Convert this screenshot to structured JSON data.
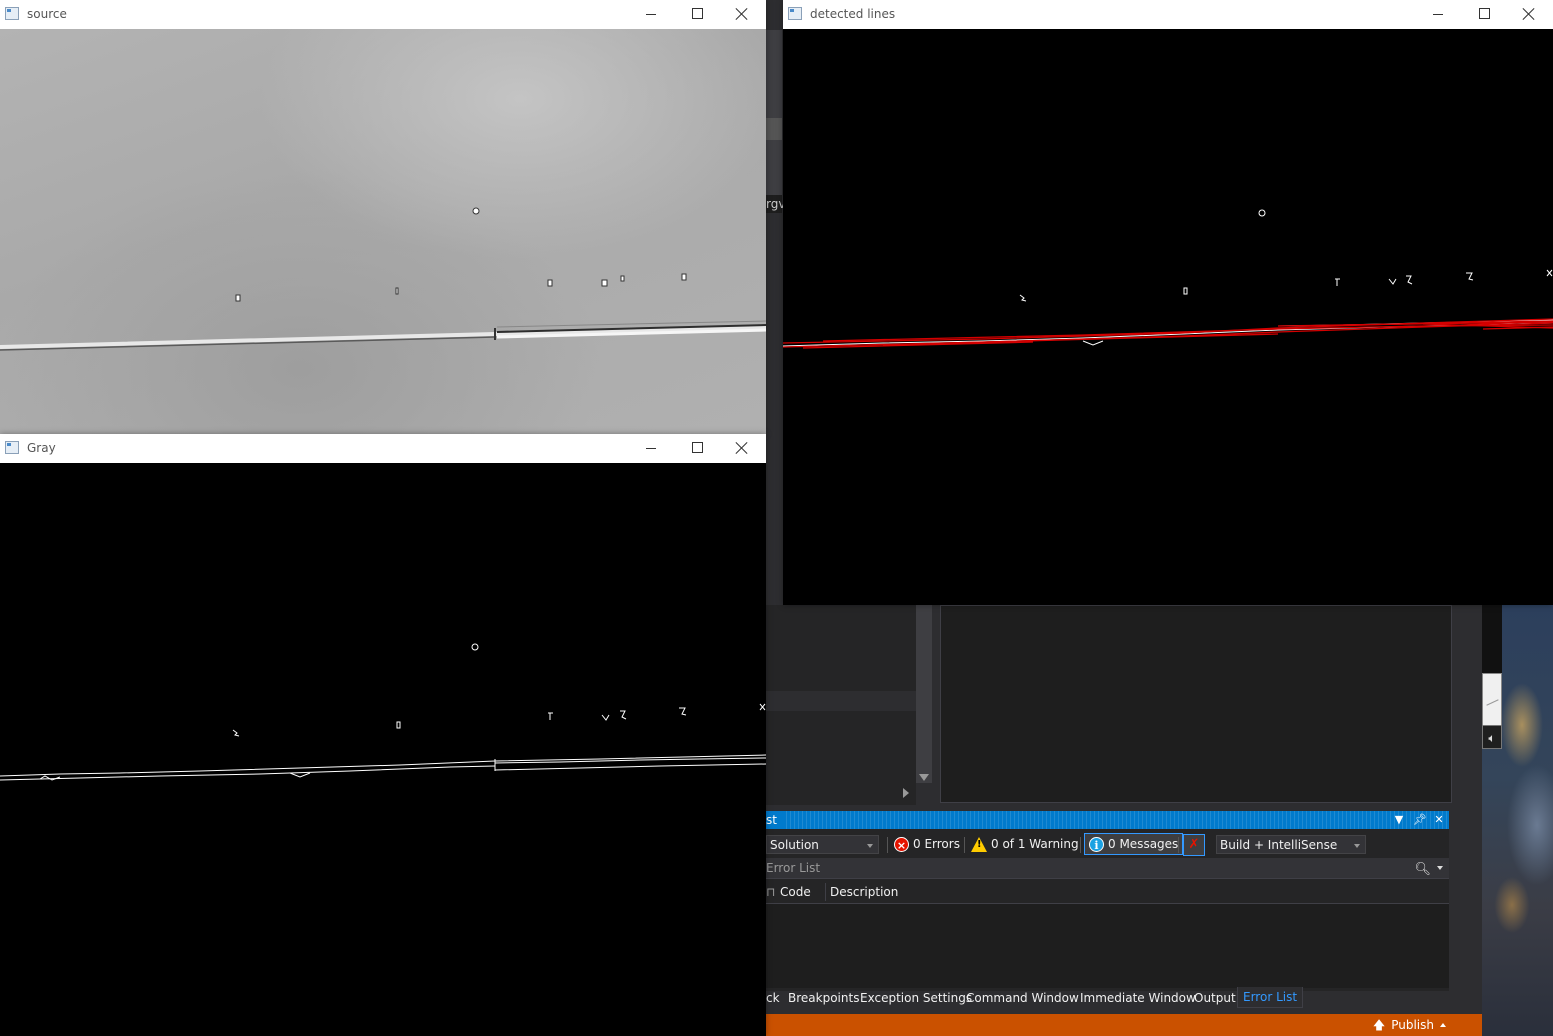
{
  "windows": {
    "source": {
      "title": "source"
    },
    "gray": {
      "title": "Gray"
    },
    "lines": {
      "title": "detected lines"
    }
  },
  "vs": {
    "side_fragment_text": "rgv",
    "error_list": {
      "title_fragment": "st",
      "scope_dropdown": "Solution",
      "errors_label": "0 Errors",
      "warnings_label": "0 of 1 Warning",
      "messages_label": "0 Messages",
      "build_dropdown": "Build + IntelliSense",
      "search_placeholder": "Error List",
      "columns": {
        "code": "Code",
        "description": "Description"
      }
    },
    "bottom_tabs": [
      "ck",
      "Breakpoints",
      "Exception Settings",
      "Command Window",
      "Immediate Window",
      "Output",
      "Error List"
    ],
    "active_tab": "Error List",
    "status": {
      "publish": "Publish"
    }
  },
  "colors": {
    "vs_background": "#2d2d30",
    "vs_accent": "#007acc",
    "status_bar": "#ca5100",
    "line_highlight": "#d40000"
  }
}
